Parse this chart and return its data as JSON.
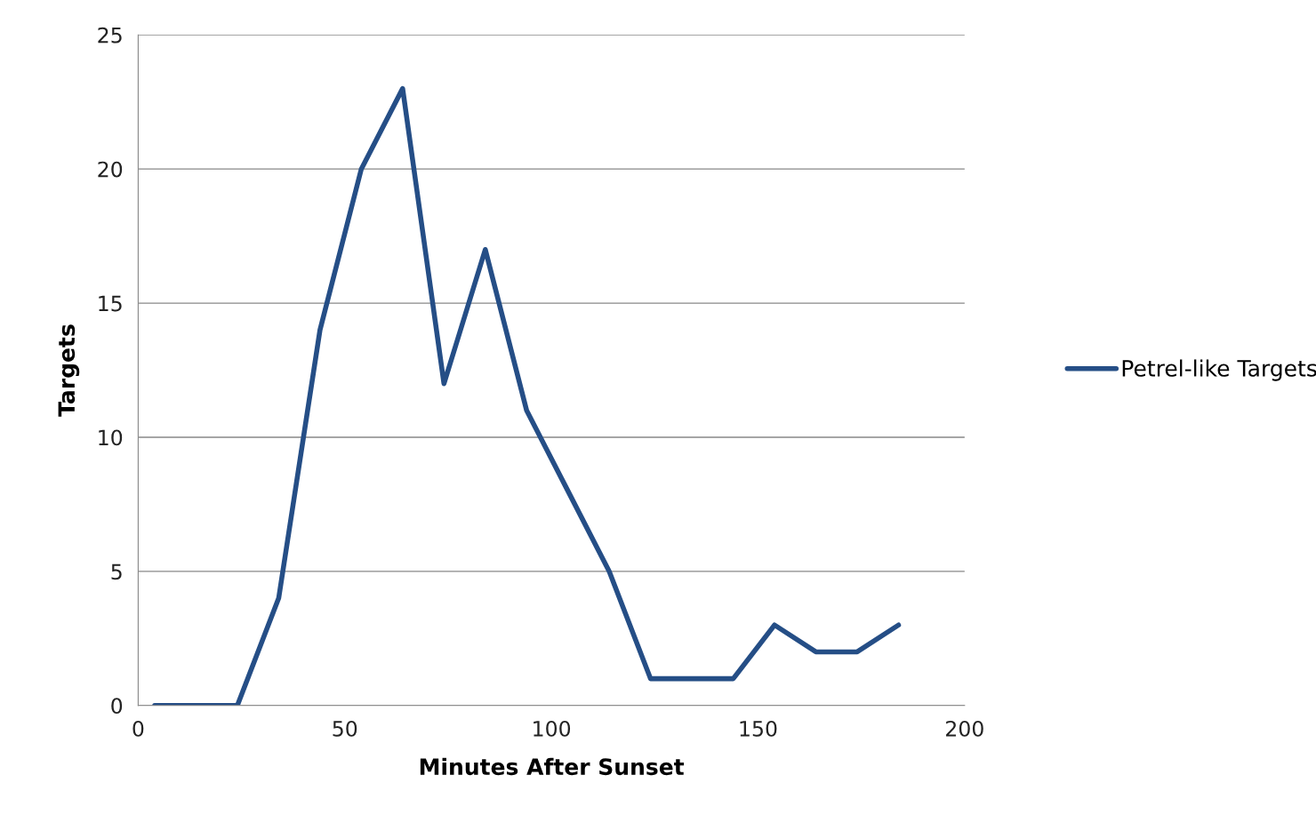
{
  "chart_data": {
    "type": "line",
    "xlabel": "Minutes After Sunset",
    "ylabel": "Targets",
    "x": [
      4,
      14,
      24,
      34,
      44,
      54,
      64,
      74,
      84,
      94,
      104,
      114,
      124,
      134,
      144,
      154,
      164,
      174,
      184
    ],
    "series": [
      {
        "name": "Petrel-like Targets",
        "color": "#254e86",
        "values": [
          0,
          0,
          0,
          4,
          14,
          20,
          23,
          12,
          17,
          11,
          8,
          5,
          1,
          1,
          1,
          3,
          2,
          2,
          3
        ]
      }
    ],
    "xlim": [
      0,
      200
    ],
    "xticks": [
      0,
      50,
      100,
      150,
      200
    ],
    "ylim": [
      0,
      25
    ],
    "yticks": [
      0,
      5,
      10,
      15,
      20,
      25
    ],
    "grid": "y",
    "legend": "right",
    "marker": "none",
    "line_style": "solid"
  }
}
